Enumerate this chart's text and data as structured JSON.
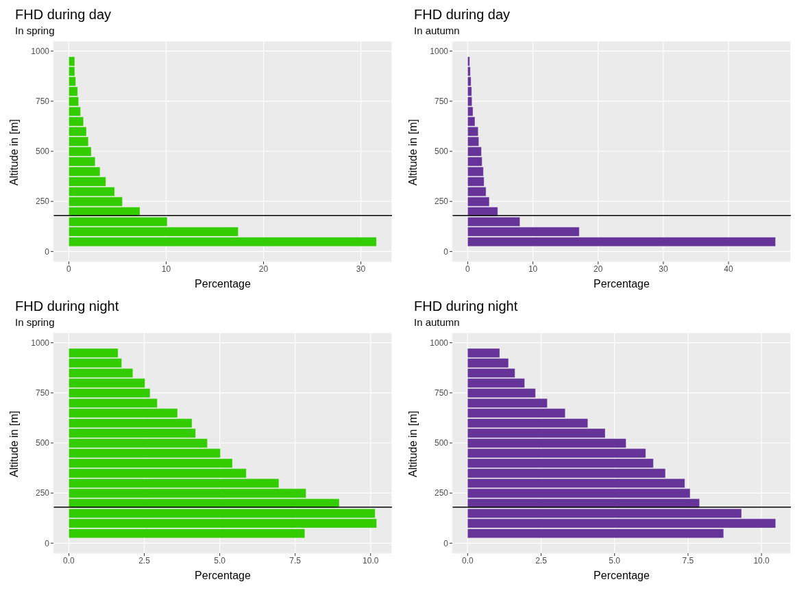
{
  "chart_data": [
    {
      "type": "bar",
      "orientation": "horizontal",
      "title": "FHD during day",
      "subtitle": "In spring",
      "xlabel": "Percentage",
      "ylabel": "Altitude in [m]",
      "x": [
        50,
        100,
        150,
        200,
        250,
        300,
        350,
        400,
        450,
        500,
        550,
        600,
        650,
        700,
        750,
        800,
        850,
        900,
        950
      ],
      "values": [
        31.6,
        17.4,
        10.1,
        7.3,
        5.5,
        4.7,
        3.8,
        3.2,
        2.7,
        2.3,
        2.0,
        1.8,
        1.5,
        1.2,
        1.0,
        0.9,
        0.7,
        0.6,
        0.6
      ],
      "color": "#33cc00",
      "xlim": [
        -1.58,
        33.2
      ],
      "xticks": [
        0,
        10,
        20,
        30
      ],
      "ylim": [
        -50,
        1050
      ],
      "yticks": [
        0,
        250,
        500,
        750,
        1000
      ],
      "grid": true,
      "ref_lines": [
        {
          "axis": "y",
          "value": 180,
          "color": "#000000"
        }
      ]
    },
    {
      "type": "bar",
      "orientation": "horizontal",
      "title": "FHD during day",
      "subtitle": "In autumn",
      "xlabel": "Percentage",
      "ylabel": "Altitude in [m]",
      "x": [
        50,
        100,
        150,
        200,
        250,
        300,
        350,
        400,
        450,
        500,
        550,
        600,
        650,
        700,
        750,
        800,
        850,
        900,
        950
      ],
      "values": [
        47.2,
        17.1,
        8.0,
        4.6,
        3.3,
        2.8,
        2.5,
        2.4,
        2.2,
        2.1,
        1.7,
        1.6,
        1.1,
        0.8,
        0.65,
        0.6,
        0.5,
        0.4,
        0.3
      ],
      "color": "#663399",
      "xlim": [
        -2.36,
        49.56
      ],
      "xticks": [
        0,
        10,
        20,
        30,
        40
      ],
      "ylim": [
        -50,
        1050
      ],
      "yticks": [
        0,
        250,
        500,
        750,
        1000
      ],
      "grid": true,
      "ref_lines": [
        {
          "axis": "y",
          "value": 180,
          "color": "#000000"
        }
      ]
    },
    {
      "type": "bar",
      "orientation": "horizontal",
      "title": "FHD during night",
      "subtitle": "In spring",
      "xlabel": "Percentage",
      "ylabel": "Altitude in [m]",
      "x": [
        50,
        100,
        150,
        200,
        250,
        300,
        350,
        400,
        450,
        500,
        550,
        600,
        650,
        700,
        750,
        800,
        850,
        900,
        950
      ],
      "values": [
        7.82,
        10.2,
        10.15,
        8.96,
        7.86,
        6.96,
        5.88,
        5.42,
        5.02,
        4.59,
        4.2,
        4.08,
        3.6,
        2.93,
        2.69,
        2.52,
        2.12,
        1.75,
        1.63
      ],
      "color": "#33cc00",
      "xlim": [
        -0.51,
        10.71
      ],
      "xticks": [
        {
          "value": 0,
          "label": "0.0"
        },
        {
          "value": 2.5,
          "label": "2.5"
        },
        {
          "value": 5,
          "label": "5.0"
        },
        {
          "value": 7.5,
          "label": "7.5"
        },
        {
          "value": 10,
          "label": "10.0"
        }
      ],
      "ylim": [
        -50,
        1050
      ],
      "yticks": [
        0,
        250,
        500,
        750,
        1000
      ],
      "grid": true,
      "ref_lines": [
        {
          "axis": "y",
          "value": 180,
          "color": "#000000"
        }
      ]
    },
    {
      "type": "bar",
      "orientation": "horizontal",
      "title": "FHD during night",
      "subtitle": "In autumn",
      "xlabel": "Percentage",
      "ylabel": "Altitude in [m]",
      "x": [
        50,
        100,
        150,
        200,
        250,
        300,
        350,
        400,
        450,
        500,
        550,
        600,
        650,
        700,
        750,
        800,
        850,
        900,
        950
      ],
      "values": [
        8.71,
        10.48,
        9.32,
        7.89,
        7.57,
        7.39,
        6.73,
        6.32,
        6.06,
        5.39,
        4.68,
        4.09,
        3.32,
        2.71,
        2.31,
        1.94,
        1.61,
        1.39,
        1.09
      ],
      "color": "#663399",
      "xlim": [
        -0.52,
        11.0
      ],
      "xticks": [
        {
          "value": 0,
          "label": "0.0"
        },
        {
          "value": 2.5,
          "label": "2.5"
        },
        {
          "value": 5,
          "label": "5.0"
        },
        {
          "value": 7.5,
          "label": "7.5"
        },
        {
          "value": 10,
          "label": "10.0"
        }
      ],
      "ylim": [
        -50,
        1050
      ],
      "yticks": [
        0,
        250,
        500,
        750,
        1000
      ],
      "grid": true,
      "ref_lines": [
        {
          "axis": "y",
          "value": 180,
          "color": "#000000"
        }
      ]
    }
  ]
}
